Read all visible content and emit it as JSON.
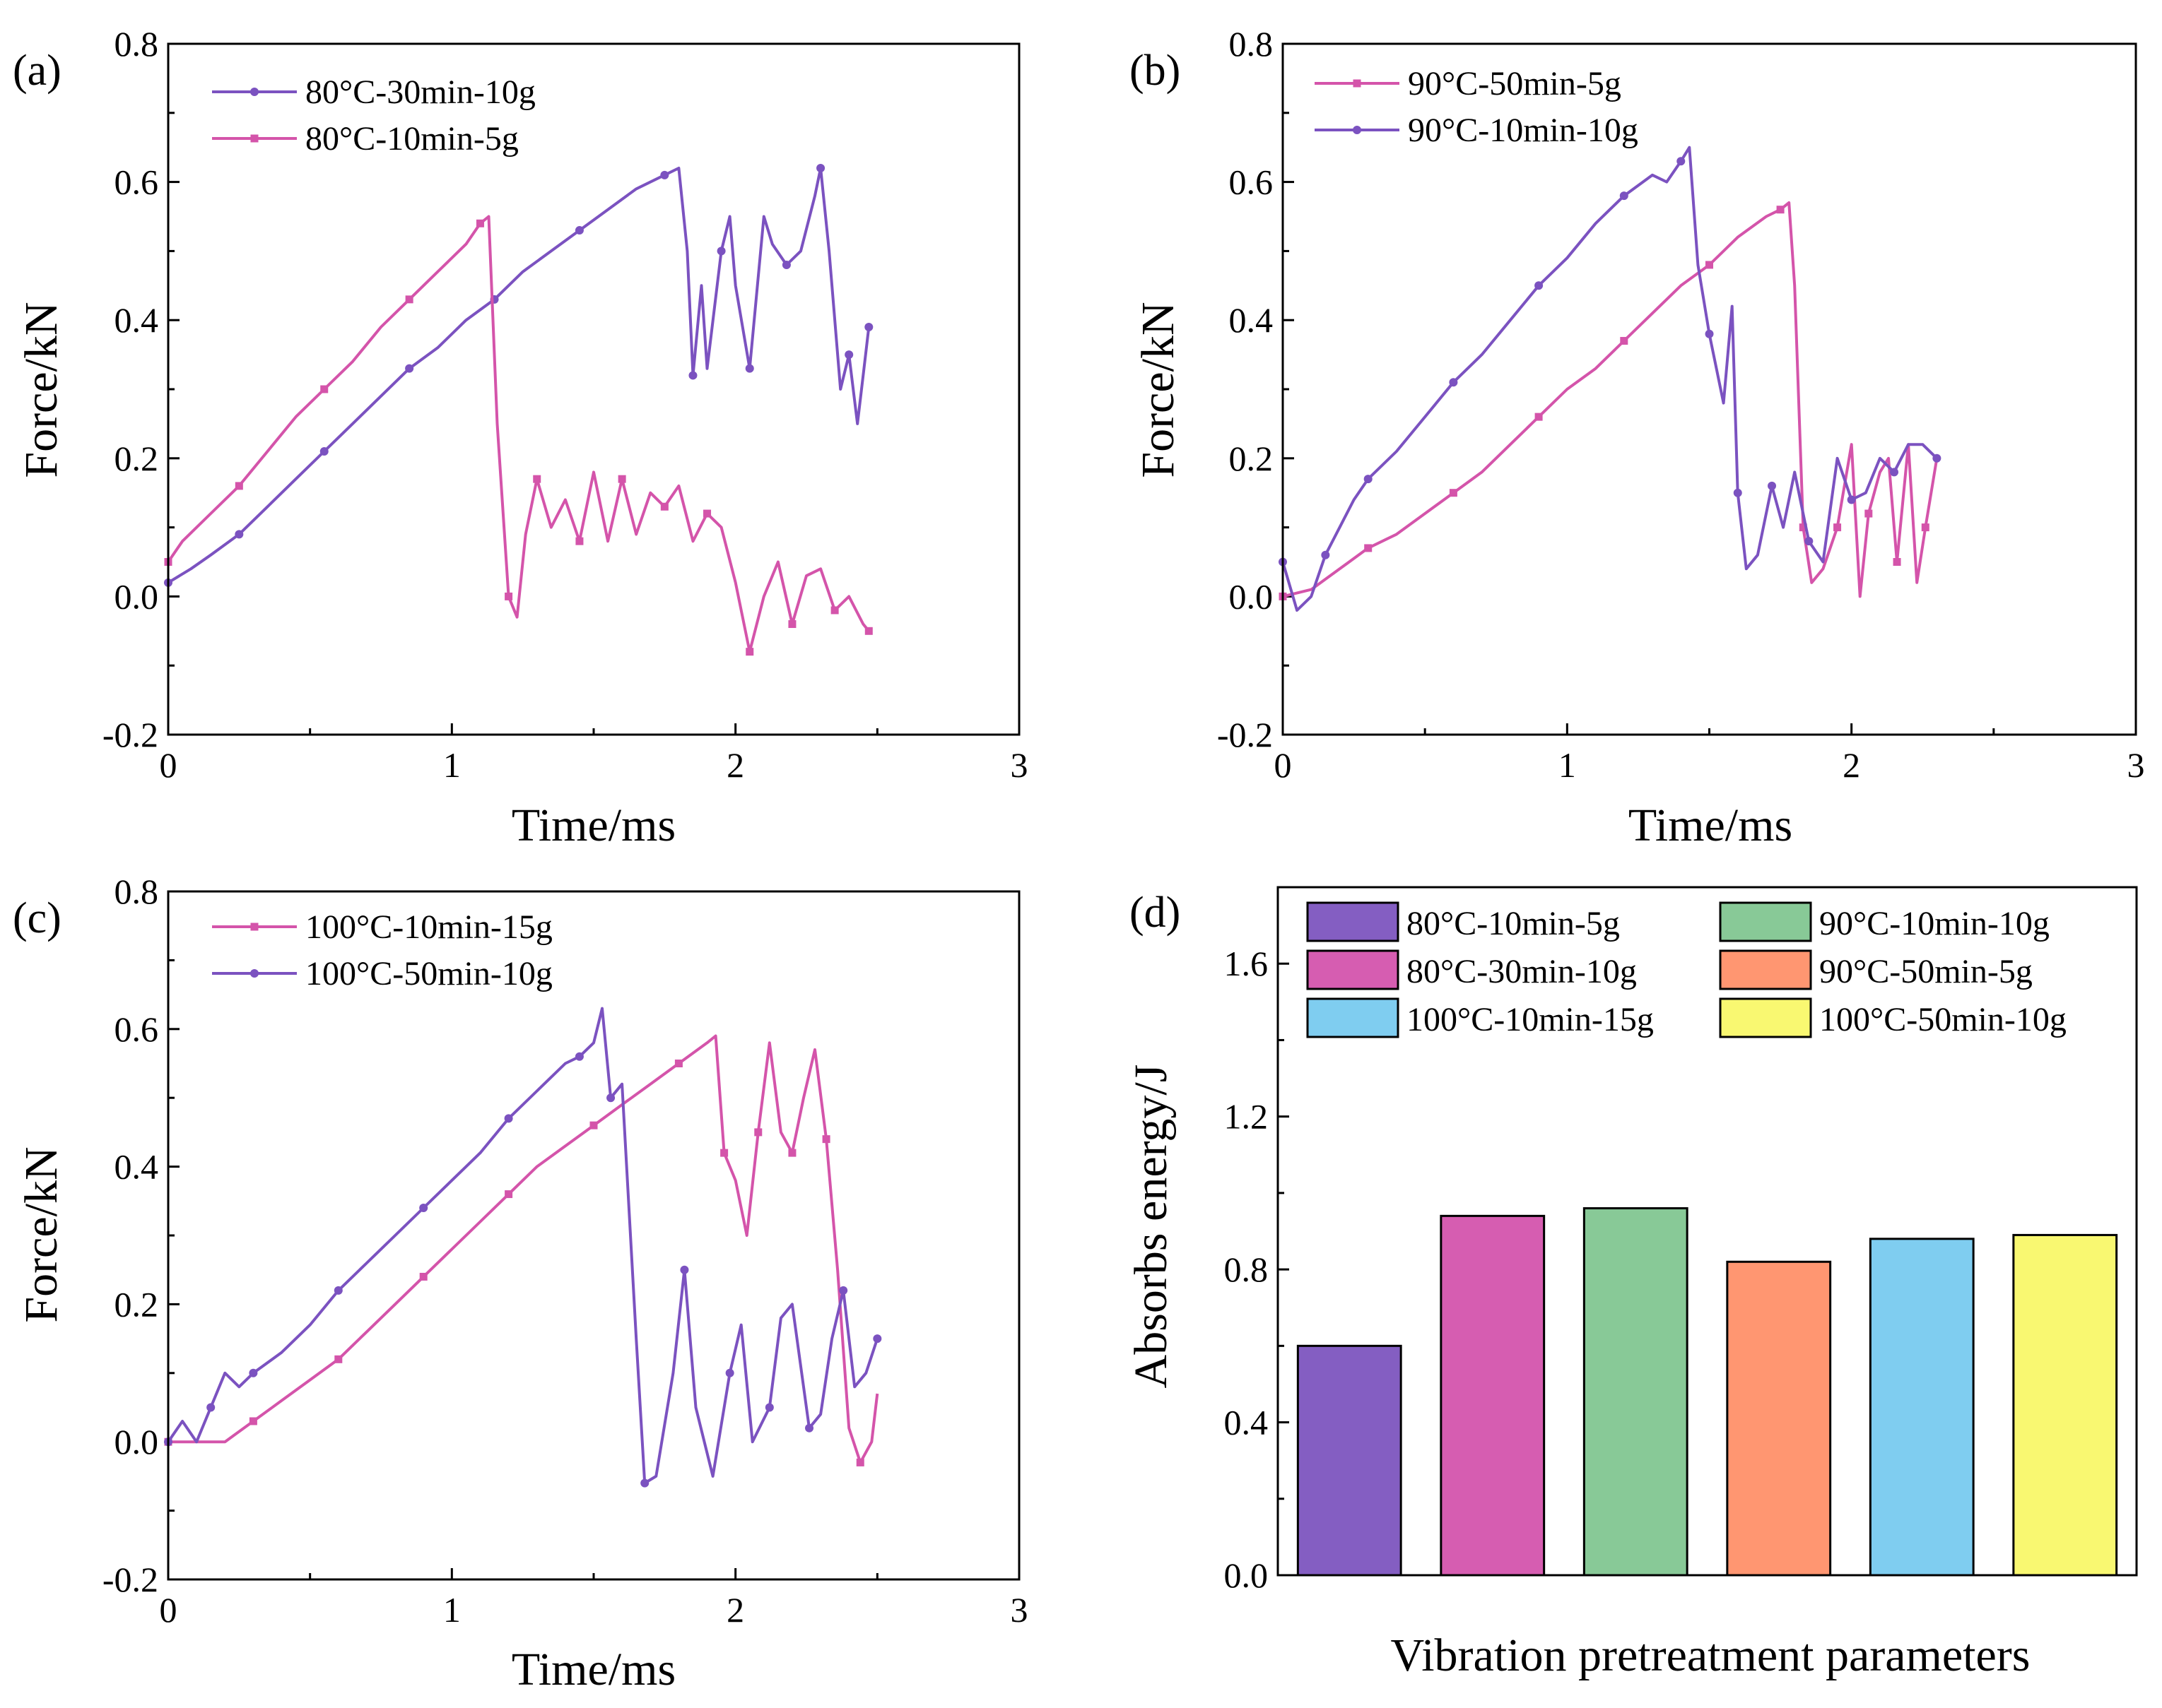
{
  "chart_data": [
    {
      "id": "a",
      "panel_label": "(a)",
      "type": "line",
      "xlabel": "Time/ms",
      "ylabel": "Force/kN",
      "xlim": [
        0,
        3
      ],
      "ylim": [
        -0.2,
        0.8
      ],
      "xticks": [
        "0",
        "1",
        "2",
        "3"
      ],
      "yticks": [
        "-0.2",
        "0.0",
        "0.2",
        "0.4",
        "0.6",
        "0.8"
      ],
      "legend_position": "top-left",
      "series": [
        {
          "name": "80°C-30min-10g",
          "color": "#7b52c0",
          "marker": "circle",
          "x": [
            0,
            0.08,
            0.15,
            0.25,
            0.35,
            0.45,
            0.55,
            0.65,
            0.75,
            0.85,
            0.95,
            1.05,
            1.15,
            1.25,
            1.35,
            1.45,
            1.55,
            1.65,
            1.75,
            1.8,
            1.83,
            1.85,
            1.88,
            1.9,
            1.95,
            1.98,
            2.0,
            2.05,
            2.1,
            2.13,
            2.18,
            2.23,
            2.28,
            2.3,
            2.33,
            2.37,
            2.4,
            2.43,
            2.45,
            2.47
          ],
          "y": [
            0.02,
            0.04,
            0.06,
            0.09,
            0.13,
            0.17,
            0.21,
            0.25,
            0.29,
            0.33,
            0.36,
            0.4,
            0.43,
            0.47,
            0.5,
            0.53,
            0.56,
            0.59,
            0.61,
            0.62,
            0.5,
            0.32,
            0.45,
            0.33,
            0.5,
            0.55,
            0.45,
            0.33,
            0.55,
            0.51,
            0.48,
            0.5,
            0.58,
            0.62,
            0.5,
            0.3,
            0.35,
            0.25,
            0.32,
            0.39
          ]
        },
        {
          "name": "80°C-10min-5g",
          "color": "#d454aa",
          "marker": "square",
          "x": [
            0,
            0.05,
            0.15,
            0.25,
            0.35,
            0.45,
            0.55,
            0.65,
            0.75,
            0.85,
            0.95,
            1.05,
            1.1,
            1.13,
            1.16,
            1.2,
            1.23,
            1.26,
            1.3,
            1.35,
            1.4,
            1.45,
            1.5,
            1.55,
            1.6,
            1.65,
            1.7,
            1.75,
            1.8,
            1.85,
            1.9,
            1.95,
            2.0,
            2.05,
            2.1,
            2.15,
            2.2,
            2.25,
            2.3,
            2.35,
            2.4,
            2.45,
            2.47
          ],
          "y": [
            0.05,
            0.08,
            0.12,
            0.16,
            0.21,
            0.26,
            0.3,
            0.34,
            0.39,
            0.43,
            0.47,
            0.51,
            0.54,
            0.55,
            0.25,
            0.0,
            -0.03,
            0.09,
            0.17,
            0.1,
            0.14,
            0.08,
            0.18,
            0.08,
            0.17,
            0.09,
            0.15,
            0.13,
            0.16,
            0.08,
            0.12,
            0.1,
            0.02,
            -0.08,
            0.0,
            0.05,
            -0.04,
            0.03,
            0.04,
            -0.02,
            0.0,
            -0.04,
            -0.05
          ]
        }
      ]
    },
    {
      "id": "b",
      "panel_label": "(b)",
      "type": "line",
      "xlabel": "Time/ms",
      "ylabel": "Force/kN",
      "xlim": [
        0,
        3
      ],
      "ylim": [
        -0.2,
        0.8
      ],
      "xticks": [
        "0",
        "1",
        "2",
        "3"
      ],
      "yticks": [
        "-0.2",
        "0.0",
        "0.2",
        "0.4",
        "0.6",
        "0.8"
      ],
      "legend_position": "top-left",
      "series": [
        {
          "name": "90°C-50min-5g",
          "color": "#d454aa",
          "marker": "square",
          "x": [
            0,
            0.1,
            0.2,
            0.3,
            0.4,
            0.5,
            0.6,
            0.7,
            0.8,
            0.9,
            1.0,
            1.1,
            1.2,
            1.3,
            1.4,
            1.5,
            1.6,
            1.7,
            1.75,
            1.78,
            1.8,
            1.83,
            1.86,
            1.9,
            1.95,
            2.0,
            2.03,
            2.06,
            2.1,
            2.13,
            2.16,
            2.2,
            2.23,
            2.26,
            2.3
          ],
          "y": [
            0.0,
            0.01,
            0.04,
            0.07,
            0.09,
            0.12,
            0.15,
            0.18,
            0.22,
            0.26,
            0.3,
            0.33,
            0.37,
            0.41,
            0.45,
            0.48,
            0.52,
            0.55,
            0.56,
            0.57,
            0.45,
            0.1,
            0.02,
            0.04,
            0.1,
            0.22,
            0.0,
            0.12,
            0.18,
            0.2,
            0.05,
            0.22,
            0.02,
            0.1,
            0.2
          ]
        },
        {
          "name": "90°C-10min-10g",
          "color": "#7b52c0",
          "marker": "circle",
          "x": [
            0,
            0.05,
            0.1,
            0.15,
            0.2,
            0.25,
            0.3,
            0.4,
            0.5,
            0.6,
            0.7,
            0.8,
            0.9,
            1.0,
            1.1,
            1.2,
            1.3,
            1.35,
            1.4,
            1.43,
            1.46,
            1.5,
            1.55,
            1.58,
            1.6,
            1.63,
            1.67,
            1.72,
            1.76,
            1.8,
            1.85,
            1.9,
            1.95,
            2.0,
            2.05,
            2.1,
            2.15,
            2.2,
            2.25,
            2.3
          ],
          "y": [
            0.05,
            -0.02,
            0.0,
            0.06,
            0.1,
            0.14,
            0.17,
            0.21,
            0.26,
            0.31,
            0.35,
            0.4,
            0.45,
            0.49,
            0.54,
            0.58,
            0.61,
            0.6,
            0.63,
            0.65,
            0.48,
            0.38,
            0.28,
            0.42,
            0.15,
            0.04,
            0.06,
            0.16,
            0.1,
            0.18,
            0.08,
            0.05,
            0.2,
            0.14,
            0.15,
            0.2,
            0.18,
            0.22,
            0.22,
            0.2
          ]
        }
      ]
    },
    {
      "id": "c",
      "panel_label": "(c)",
      "type": "line",
      "xlabel": "Time/ms",
      "ylabel": "Force/kN",
      "xlim": [
        0,
        3
      ],
      "ylim": [
        -0.2,
        0.8
      ],
      "xticks": [
        "0",
        "1",
        "2",
        "3"
      ],
      "yticks": [
        "-0.2",
        "0.0",
        "0.2",
        "0.4",
        "0.6",
        "0.8"
      ],
      "legend_position": "top-left",
      "series": [
        {
          "name": "100°C-10min-15g",
          "color": "#d454aa",
          "marker": "square",
          "x": [
            0,
            0.1,
            0.2,
            0.3,
            0.4,
            0.5,
            0.6,
            0.7,
            0.8,
            0.9,
            1.0,
            1.1,
            1.2,
            1.3,
            1.4,
            1.5,
            1.6,
            1.7,
            1.8,
            1.9,
            1.93,
            1.96,
            2.0,
            2.04,
            2.08,
            2.12,
            2.16,
            2.2,
            2.24,
            2.28,
            2.32,
            2.36,
            2.4,
            2.44,
            2.48,
            2.5
          ],
          "y": [
            0.0,
            0.0,
            0.0,
            0.03,
            0.06,
            0.09,
            0.12,
            0.16,
            0.2,
            0.24,
            0.28,
            0.32,
            0.36,
            0.4,
            0.43,
            0.46,
            0.49,
            0.52,
            0.55,
            0.58,
            0.59,
            0.42,
            0.38,
            0.3,
            0.45,
            0.58,
            0.45,
            0.42,
            0.5,
            0.57,
            0.44,
            0.25,
            0.02,
            -0.03,
            0.0,
            0.07
          ]
        },
        {
          "name": "100°C-50min-10g",
          "color": "#7b52c0",
          "marker": "circle",
          "x": [
            0,
            0.05,
            0.1,
            0.15,
            0.2,
            0.25,
            0.3,
            0.4,
            0.5,
            0.6,
            0.7,
            0.8,
            0.9,
            1.0,
            1.1,
            1.2,
            1.3,
            1.4,
            1.45,
            1.5,
            1.53,
            1.56,
            1.6,
            1.65,
            1.68,
            1.72,
            1.78,
            1.82,
            1.86,
            1.92,
            1.98,
            2.02,
            2.06,
            2.12,
            2.16,
            2.2,
            2.26,
            2.3,
            2.34,
            2.38,
            2.42,
            2.46,
            2.5
          ],
          "y": [
            0.0,
            0.03,
            0.0,
            0.05,
            0.1,
            0.08,
            0.1,
            0.13,
            0.17,
            0.22,
            0.26,
            0.3,
            0.34,
            0.38,
            0.42,
            0.47,
            0.51,
            0.55,
            0.56,
            0.58,
            0.63,
            0.5,
            0.52,
            0.15,
            -0.06,
            -0.05,
            0.1,
            0.25,
            0.05,
            -0.05,
            0.1,
            0.17,
            0.0,
            0.05,
            0.18,
            0.2,
            0.02,
            0.04,
            0.15,
            0.22,
            0.08,
            0.1,
            0.15
          ]
        }
      ]
    },
    {
      "id": "d",
      "panel_label": "(d)",
      "type": "bar",
      "xlabel": "Vibration pretreatment parameters",
      "ylabel": "Absorbs energy/J",
      "ylim": [
        0,
        1.8
      ],
      "yticks": [
        "0.0",
        "0.4",
        "0.8",
        "1.2",
        "1.6"
      ],
      "legend_position": "top",
      "categories": [
        "80°C-10min-5g",
        "80°C-30min-10g",
        "90°C-10min-10g",
        "90°C-50min-5g",
        "100°C-10min-15g",
        "100°C-50min-10g"
      ],
      "values": [
        0.6,
        0.94,
        0.96,
        0.82,
        0.88,
        0.89
      ],
      "colors": [
        "#845ec2",
        "#d65db1",
        "#88c997",
        "#ff9671",
        "#7fcdf0",
        "#f9f871"
      ]
    }
  ]
}
